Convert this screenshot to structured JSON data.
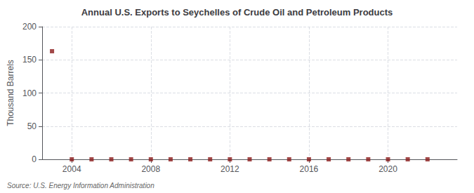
{
  "chart_data": {
    "type": "scatter",
    "title": "Annual U.S. Exports to Seychelles of Crude Oil and Petroleum Products",
    "ylabel": "Thousand Barrels",
    "annotation": "Source: U.S. Energy Information Administration",
    "x": [
      2003,
      2004,
      2005,
      2006,
      2007,
      2008,
      2009,
      2010,
      2011,
      2012,
      2013,
      2014,
      2015,
      2016,
      2017,
      2018,
      2019,
      2020,
      2021,
      2022
    ],
    "values": [
      163,
      0,
      0,
      0,
      0,
      0,
      0,
      0,
      0,
      0,
      0,
      0,
      0,
      0,
      0,
      0,
      0,
      0,
      0,
      0
    ],
    "color": "#8b1a1a",
    "marker": "square",
    "xlim": [
      2002.5,
      2023.5
    ],
    "xticks": [
      2004,
      2008,
      2012,
      2016,
      2020
    ],
    "ylim": [
      0,
      200
    ],
    "yticks": [
      0,
      50,
      100,
      150,
      200
    ],
    "grid": true
  }
}
